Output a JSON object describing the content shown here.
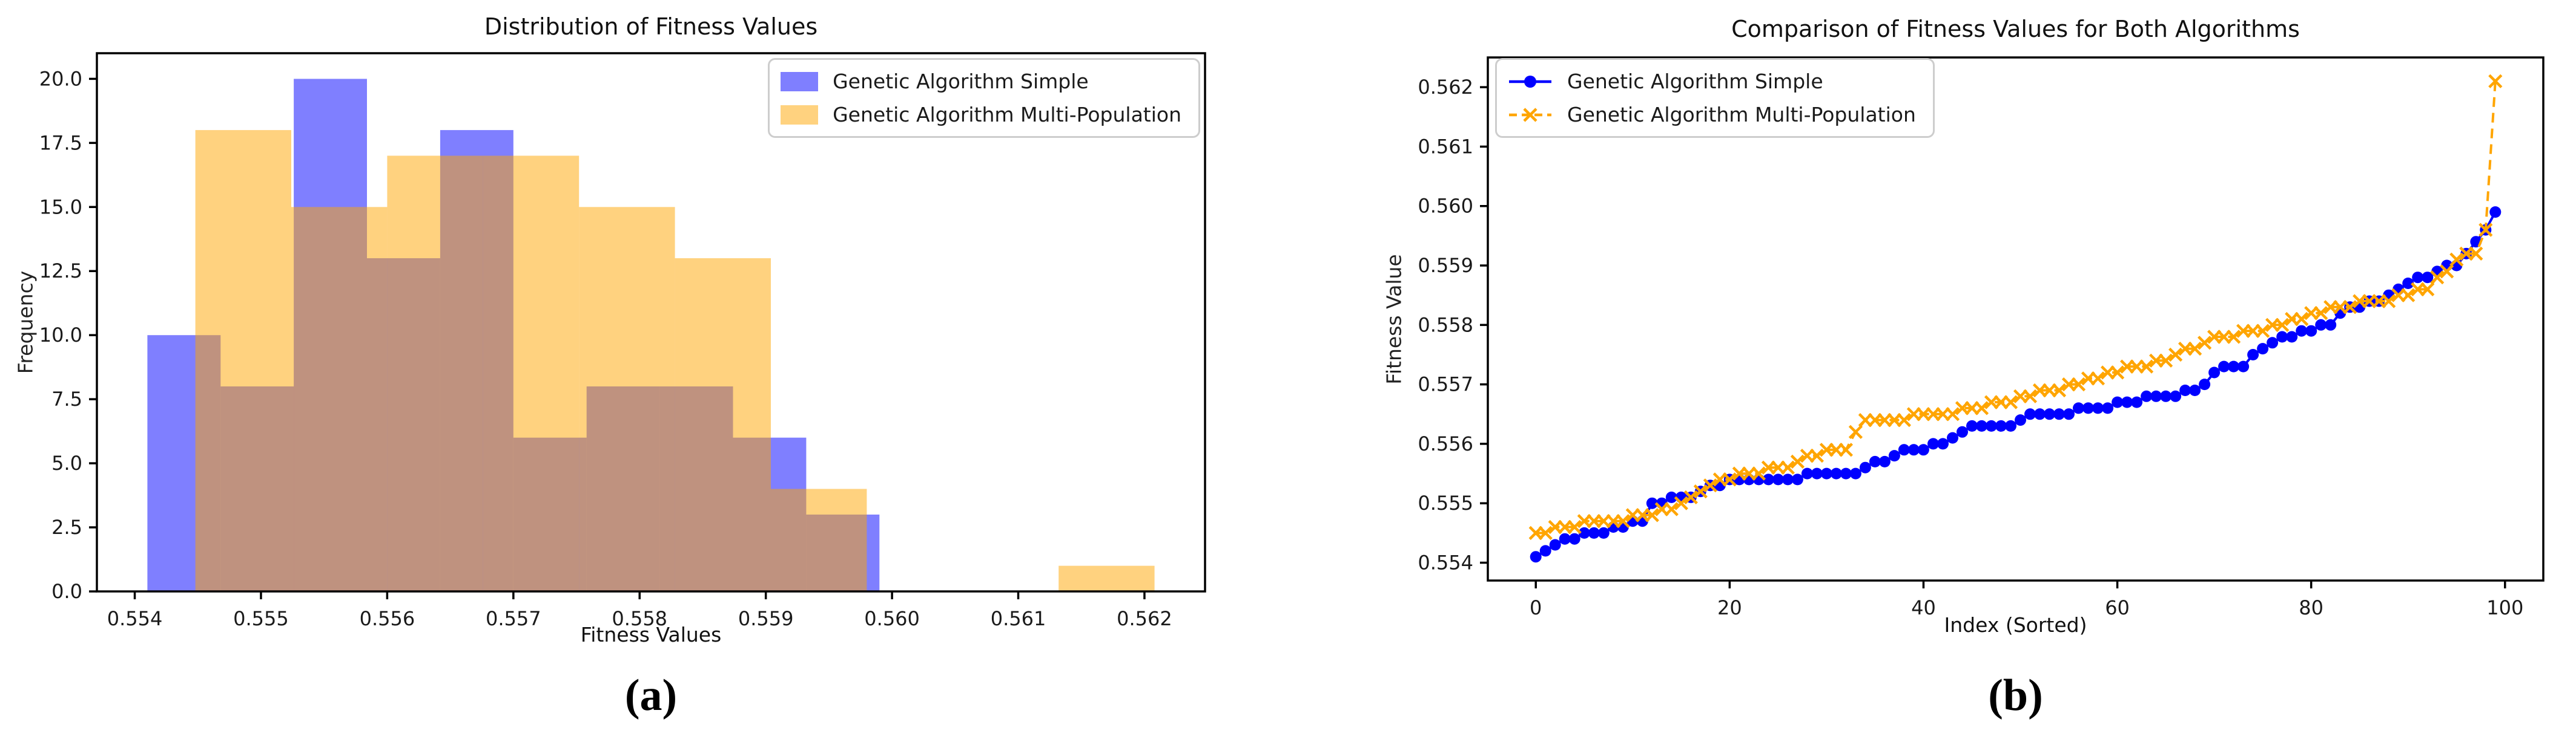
{
  "colors": {
    "simple": "#0000ff",
    "multi": "#ffa500",
    "axis": "#000000",
    "legend_border": "#cdcdcd",
    "background": "#ffffff"
  },
  "chart_data": [
    {
      "id": "a",
      "type": "histogram",
      "caption": "(a)",
      "title": "Distribution of Fitness Values",
      "xlabel": "Fitness Values",
      "ylabel": "Frequency",
      "xlim": [
        0.5537,
        0.56248
      ],
      "ylim": [
        0,
        21
      ],
      "grid": false,
      "legend_position": "top-right",
      "xticks": [
        {
          "v": 0.554,
          "label": "0.554"
        },
        {
          "v": 0.555,
          "label": "0.555"
        },
        {
          "v": 0.556,
          "label": "0.556"
        },
        {
          "v": 0.557,
          "label": "0.557"
        },
        {
          "v": 0.558,
          "label": "0.558"
        },
        {
          "v": 0.559,
          "label": "0.559"
        },
        {
          "v": 0.56,
          "label": "0.560"
        },
        {
          "v": 0.561,
          "label": "0.561"
        },
        {
          "v": 0.562,
          "label": "0.562"
        }
      ],
      "yticks": [
        {
          "v": 0,
          "label": "0.0"
        },
        {
          "v": 2.5,
          "label": "2.5"
        },
        {
          "v": 5,
          "label": "5.0"
        },
        {
          "v": 7.5,
          "label": "7.5"
        },
        {
          "v": 10,
          "label": "10.0"
        },
        {
          "v": 12.5,
          "label": "12.5"
        },
        {
          "v": 15,
          "label": "15.0"
        },
        {
          "v": 17.5,
          "label": "17.5"
        },
        {
          "v": 20,
          "label": "20.0"
        }
      ],
      "series": [
        {
          "name": "Genetic Algorithm Simple",
          "color": "#0000ff",
          "fill_opacity": 0.5,
          "bin_edges": [
            0.5541,
            0.55468,
            0.55526,
            0.55584,
            0.55642,
            0.557,
            0.55758,
            0.55816,
            0.55874,
            0.55932,
            0.5599
          ],
          "counts": [
            10,
            8,
            20,
            13,
            18,
            6,
            8,
            8,
            6,
            3
          ]
        },
        {
          "name": "Genetic Algorithm Multi-Population",
          "color": "#ffa500",
          "fill_opacity": 0.5,
          "bin_edges": [
            0.55448,
            0.55524,
            0.556,
            0.55676,
            0.55752,
            0.55828,
            0.55904,
            0.5598,
            0.56056,
            0.56132,
            0.56208
          ],
          "counts": [
            18,
            15,
            17,
            17,
            15,
            13,
            4,
            0,
            0,
            1
          ]
        }
      ]
    },
    {
      "id": "b",
      "type": "line",
      "caption": "(b)",
      "title": "Comparison of Fitness Values for Both Algorithms",
      "xlabel": "Index (Sorted)",
      "ylabel": "Fitness Value",
      "xlim": [
        -4.95,
        103.95
      ],
      "ylim": [
        0.5537,
        0.5625
      ],
      "grid": false,
      "legend_position": "top-left",
      "xticks": [
        {
          "v": 0,
          "label": "0"
        },
        {
          "v": 20,
          "label": "20"
        },
        {
          "v": 40,
          "label": "40"
        },
        {
          "v": 60,
          "label": "60"
        },
        {
          "v": 80,
          "label": "80"
        },
        {
          "v": 100,
          "label": "100"
        }
      ],
      "yticks": [
        {
          "v": 0.554,
          "label": "0.554"
        },
        {
          "v": 0.555,
          "label": "0.555"
        },
        {
          "v": 0.556,
          "label": "0.556"
        },
        {
          "v": 0.557,
          "label": "0.557"
        },
        {
          "v": 0.558,
          "label": "0.558"
        },
        {
          "v": 0.559,
          "label": "0.559"
        },
        {
          "v": 0.56,
          "label": "0.560"
        },
        {
          "v": 0.561,
          "label": "0.561"
        },
        {
          "v": 0.562,
          "label": "0.562"
        }
      ],
      "x_description": "index 0 to 99",
      "series": [
        {
          "name": "Genetic Algorithm Simple",
          "color": "#0000ff",
          "marker": "circle",
          "linestyle": "solid",
          "values": [
            0.5541,
            0.5542,
            0.5543,
            0.5544,
            0.5544,
            0.5545,
            0.5545,
            0.5545,
            0.5546,
            0.5546,
            0.5547,
            0.5547,
            0.555,
            0.555,
            0.5551,
            0.5551,
            0.5551,
            0.5552,
            0.5553,
            0.5553,
            0.5554,
            0.5554,
            0.5554,
            0.5554,
            0.5554,
            0.5554,
            0.5554,
            0.5554,
            0.5555,
            0.5555,
            0.5555,
            0.5555,
            0.5555,
            0.5555,
            0.5556,
            0.5557,
            0.5557,
            0.5558,
            0.5559,
            0.5559,
            0.5559,
            0.556,
            0.556,
            0.5561,
            0.5562,
            0.5563,
            0.5563,
            0.5563,
            0.5563,
            0.5563,
            0.5564,
            0.5565,
            0.5565,
            0.5565,
            0.5565,
            0.5565,
            0.5566,
            0.5566,
            0.5566,
            0.5566,
            0.5567,
            0.5567,
            0.5567,
            0.5568,
            0.5568,
            0.5568,
            0.5568,
            0.5569,
            0.5569,
            0.557,
            0.5572,
            0.5573,
            0.5573,
            0.5573,
            0.5575,
            0.5576,
            0.5577,
            0.5578,
            0.5578,
            0.5579,
            0.5579,
            0.558,
            0.558,
            0.5582,
            0.5583,
            0.5583,
            0.5584,
            0.5584,
            0.5585,
            0.5586,
            0.5587,
            0.5588,
            0.5588,
            0.5589,
            0.559,
            0.559,
            0.5592,
            0.5594,
            0.5596,
            0.5599
          ]
        },
        {
          "name": "Genetic Algorithm Multi-Population",
          "color": "#ffa500",
          "marker": "x",
          "linestyle": "dashed",
          "values": [
            0.5545,
            0.5545,
            0.5546,
            0.5546,
            0.5546,
            0.5547,
            0.5547,
            0.5547,
            0.5547,
            0.5547,
            0.5548,
            0.5548,
            0.5548,
            0.5549,
            0.5549,
            0.555,
            0.5551,
            0.5552,
            0.5553,
            0.5554,
            0.5554,
            0.5555,
            0.5555,
            0.5555,
            0.5556,
            0.5556,
            0.5556,
            0.5557,
            0.5558,
            0.5558,
            0.5559,
            0.5559,
            0.5559,
            0.5562,
            0.5564,
            0.5564,
            0.5564,
            0.5564,
            0.5564,
            0.5565,
            0.5565,
            0.5565,
            0.5565,
            0.5565,
            0.5566,
            0.5566,
            0.5566,
            0.5567,
            0.5567,
            0.5567,
            0.5568,
            0.5568,
            0.5569,
            0.5569,
            0.5569,
            0.557,
            0.557,
            0.5571,
            0.5571,
            0.5572,
            0.5572,
            0.5573,
            0.5573,
            0.5573,
            0.5574,
            0.5574,
            0.5575,
            0.5576,
            0.5576,
            0.5577,
            0.5578,
            0.5578,
            0.5578,
            0.5579,
            0.5579,
            0.5579,
            0.558,
            0.558,
            0.5581,
            0.5581,
            0.5582,
            0.5582,
            0.5583,
            0.5583,
            0.5583,
            0.5584,
            0.5584,
            0.5584,
            0.5584,
            0.5585,
            0.5585,
            0.5586,
            0.5586,
            0.5588,
            0.5589,
            0.5591,
            0.5592,
            0.5592,
            0.5596,
            0.5621
          ]
        }
      ]
    }
  ]
}
